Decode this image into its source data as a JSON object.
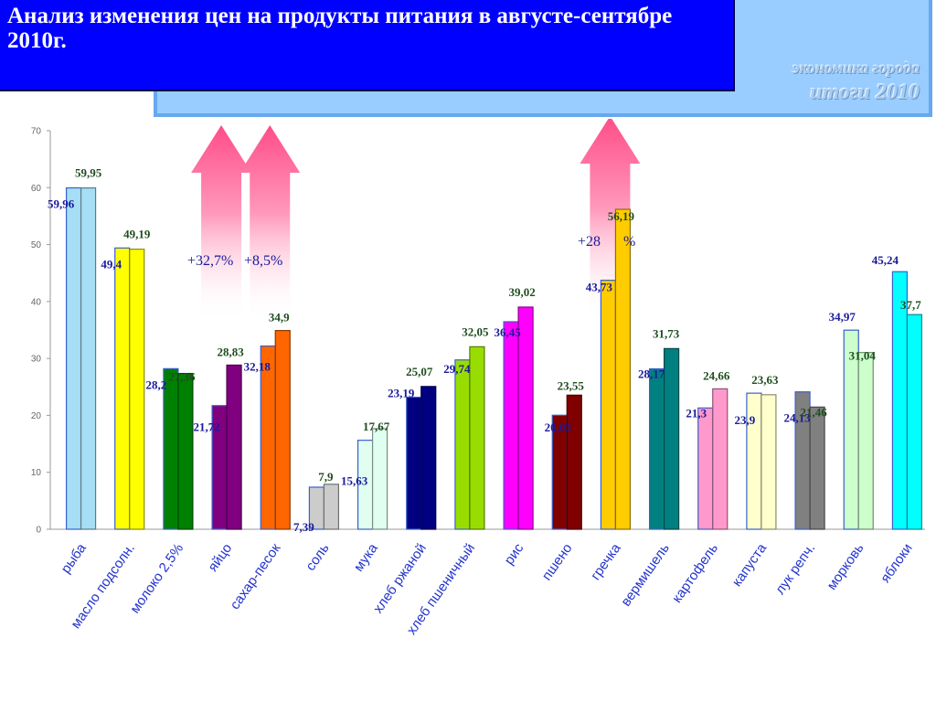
{
  "header": {
    "title": "Анализ изменения цен на продукты питания в августе-сентябре  2010г.",
    "brand_line1": "экономика города",
    "brand_line2": "итоги  2010"
  },
  "chart_data": {
    "type": "bar",
    "title": "Анализ изменения цен на продукты питания в августе-сентябре  2010г.",
    "xlabel": "",
    "ylabel": "",
    "ylim": [
      0,
      70
    ],
    "yticks": [
      0,
      10,
      20,
      30,
      40,
      50,
      60,
      70
    ],
    "grid": false,
    "legend": "none",
    "categories": [
      "рыба",
      "масло подсолн.",
      "молоко 2,5%",
      "яйцо",
      "сахар-песок",
      "соль",
      "мука",
      "хлеб ржаной",
      "хлеб пшеничный",
      "рис",
      "пшено",
      "гречка",
      "вермишель",
      "картофель",
      "капуста",
      "лук репч.",
      "морковь",
      "яблоки"
    ],
    "series": [
      {
        "values": [
          59.96,
          49.4,
          28.2,
          21.72,
          32.18,
          7.39,
          15.63,
          23.19,
          29.74,
          36.45,
          20.03,
          43.73,
          28.17,
          21.3,
          23.9,
          24.13,
          34.97,
          45.24
        ],
        "labels": [
          "59,96",
          "49,4",
          "28,2",
          "21,72",
          "32,18",
          "7,39",
          "15,63",
          "23,19",
          "29,74",
          "36,45",
          "20,03",
          "43,73",
          "28,17",
          "21,3",
          "23,9",
          "24,13",
          "34,97",
          "45,24"
        ]
      },
      {
        "values": [
          59.95,
          49.19,
          27.36,
          28.83,
          34.9,
          7.9,
          17.67,
          25.07,
          32.05,
          39.02,
          23.55,
          56.19,
          31.73,
          24.66,
          23.63,
          21.46,
          31.04,
          37.7
        ],
        "labels": [
          "59,95",
          "49,19",
          "27,36",
          "28,83",
          "34,9",
          "7,9",
          "17,67",
          "25,07",
          "32,05",
          "39,02",
          "23,55",
          "56,19",
          "31,73",
          "24,66",
          "23,63",
          "21,46",
          "31,04",
          "37,7"
        ]
      }
    ],
    "colors": [
      "#a6dff5",
      "#ffff00",
      "#008000",
      "#800080",
      "#ff6600",
      "#cccccc",
      "#e0fff0",
      "#000080",
      "#99dd00",
      "#ff00ff",
      "#800000",
      "#ffcc00",
      "#008080",
      "#ff99cc",
      "#ffffcc",
      "#808080",
      "#ccffcc",
      "#00ffff"
    ],
    "annotations": [
      {
        "text": "+32,7%",
        "category": "яйцо",
        "arrow": "up"
      },
      {
        "text": "+8,5%",
        "category": "сахар-песок",
        "arrow": "up"
      },
      {
        "text": "+28",
        "category": "гречка",
        "arrow": "up"
      },
      {
        "text": "%",
        "category": "гречка"
      }
    ]
  }
}
